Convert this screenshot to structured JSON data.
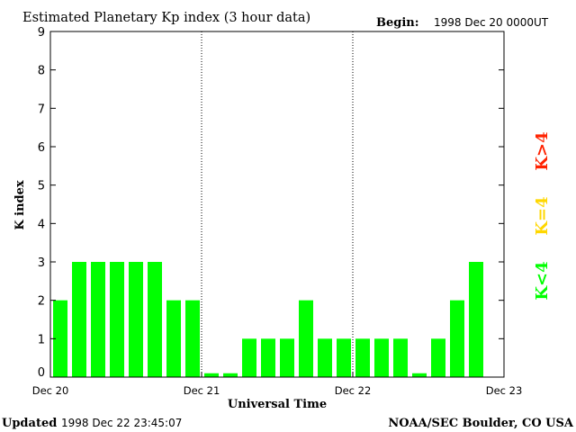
{
  "chart_data": {
    "type": "bar",
    "title": "Estimated Planetary Kp index (3 hour data)",
    "begin_label": "Begin:",
    "begin_value": "1998 Dec 20 0000UT",
    "xlabel": "Universal Time",
    "ylabel": "K index",
    "ylim": [
      0,
      9
    ],
    "yticks": [
      "0",
      "1",
      "2",
      "3",
      "4",
      "5",
      "6",
      "7",
      "8",
      "9"
    ],
    "x_tick_labels": [
      "Dec 20",
      "Dec 21",
      "Dec 22",
      "Dec 23"
    ],
    "day_dividers": [
      "Dec 21",
      "Dec 22"
    ],
    "bins_per_day": 8,
    "values": [
      2,
      3,
      3,
      3,
      3,
      3,
      2,
      2,
      0.1,
      0.1,
      1,
      1,
      1,
      2,
      1,
      1,
      1,
      1,
      1,
      0.1,
      1,
      2,
      3
    ],
    "legend": [
      {
        "label": "K<4",
        "color": "#00ff00"
      },
      {
        "label": "K=4",
        "color": "#ffd700"
      },
      {
        "label": "K>4",
        "color": "#ff2200"
      }
    ],
    "bar_color": "#00ff00"
  },
  "footer": {
    "updated_label": "Updated",
    "updated_value": "1998 Dec 22 23:45:07",
    "source": "NOAA/SEC Boulder, CO USA"
  }
}
